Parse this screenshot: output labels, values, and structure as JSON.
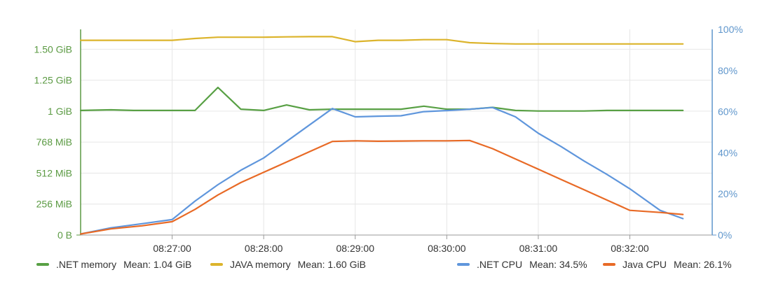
{
  "chart_data": {
    "type": "line",
    "title": "",
    "xlabel": "",
    "x_ticks": [
      "08:27:00",
      "08:28:00",
      "08:29:00",
      "08:30:00",
      "08:31:00",
      "08:32:00"
    ],
    "x_tick_minutes": [
      27,
      28,
      29,
      30,
      31,
      32
    ],
    "x_range_minutes": [
      26.0,
      32.9
    ],
    "y_left": {
      "unit": "MiB",
      "range": [
        0,
        1700
      ],
      "ticks": [
        0,
        256,
        512,
        768,
        1024,
        1280,
        1536
      ],
      "tick_labels": [
        "0 B",
        "256 MiB",
        "512 MiB",
        "768 MiB",
        "1 GiB",
        "1.25 GiB",
        "1.50 GiB"
      ],
      "color": "#5b9a43"
    },
    "y_right": {
      "unit": "%",
      "range": [
        0,
        100
      ],
      "ticks": [
        0,
        20,
        40,
        60,
        80,
        100
      ],
      "tick_labels": [
        "0%",
        "20%",
        "40%",
        "60%",
        "80%",
        "100%"
      ],
      "color": "#5f96cc"
    },
    "grid": true,
    "legend_position": "bottom",
    "series": [
      {
        "key": "net_memory",
        "name": ".NET memory",
        "mean_label": "Mean: 1.04 GiB",
        "axis": "left",
        "color": "#58a044",
        "x": [
          26.0,
          26.33,
          26.58,
          27.0,
          27.25,
          27.5,
          27.75,
          28.0,
          28.25,
          28.5,
          28.75,
          29.0,
          29.25,
          29.5,
          29.75,
          30.0,
          30.25,
          30.5,
          30.75,
          31.0,
          31.25,
          31.5,
          31.75,
          32.0,
          32.33,
          32.58
        ],
        "values": [
          1030,
          1035,
          1030,
          1030,
          1030,
          1220,
          1040,
          1030,
          1075,
          1035,
          1040,
          1040,
          1040,
          1040,
          1065,
          1040,
          1040,
          1055,
          1030,
          1025,
          1025,
          1025,
          1030,
          1030,
          1030,
          1030
        ]
      },
      {
        "key": "java_memory",
        "name": "JAVA memory",
        "mean_label": "Mean: 1.60 GiB",
        "axis": "left",
        "color": "#dcb42c",
        "x": [
          26.0,
          26.33,
          26.67,
          27.0,
          27.25,
          27.5,
          27.75,
          28.0,
          28.25,
          28.5,
          28.75,
          29.0,
          29.25,
          29.5,
          29.75,
          30.0,
          30.25,
          30.5,
          30.75,
          31.0,
          31.25,
          31.5,
          31.75,
          32.0,
          32.33,
          32.58
        ],
        "values": [
          1610,
          1610,
          1610,
          1610,
          1625,
          1635,
          1635,
          1635,
          1638,
          1640,
          1640,
          1598,
          1610,
          1610,
          1615,
          1615,
          1590,
          1583,
          1580,
          1580,
          1580,
          1580,
          1580,
          1580,
          1580,
          1580
        ]
      },
      {
        "key": "net_cpu",
        "name": ".NET CPU",
        "mean_label": "Mean: 34.5%",
        "axis": "right",
        "color": "#5f96dc",
        "x": [
          26.0,
          26.33,
          26.67,
          27.0,
          27.25,
          27.5,
          27.75,
          28.0,
          28.25,
          28.5,
          28.75,
          29.0,
          29.25,
          29.5,
          29.75,
          30.0,
          30.25,
          30.5,
          30.75,
          31.0,
          31.25,
          31.5,
          31.75,
          32.0,
          32.33,
          32.58
        ],
        "values": [
          0.5,
          3.5,
          5.5,
          7.5,
          16.5,
          24.5,
          31.5,
          37.5,
          45.5,
          53.5,
          61.5,
          57.5,
          57.8,
          58,
          60,
          60.5,
          61.2,
          62,
          57.5,
          49.5,
          43,
          36,
          29.5,
          22.5,
          12,
          8
        ]
      },
      {
        "key": "java_cpu",
        "name": "Java CPU",
        "mean_label": "Mean: 26.1%",
        "axis": "right",
        "color": "#e86a26",
        "x": [
          26.0,
          26.33,
          26.67,
          27.0,
          27.25,
          27.5,
          27.75,
          28.0,
          28.25,
          28.5,
          28.75,
          29.0,
          29.25,
          29.5,
          29.75,
          30.0,
          30.25,
          30.5,
          30.75,
          31.0,
          31.25,
          31.5,
          31.75,
          32.0,
          32.33,
          32.58
        ],
        "values": [
          0.5,
          3,
          4.5,
          6.5,
          12.5,
          19.5,
          25.5,
          30.5,
          35.5,
          40.5,
          45.5,
          45.8,
          45.6,
          45.7,
          45.8,
          45.8,
          46,
          42,
          37,
          32,
          27,
          22,
          17,
          12,
          11,
          10
        ]
      }
    ]
  }
}
